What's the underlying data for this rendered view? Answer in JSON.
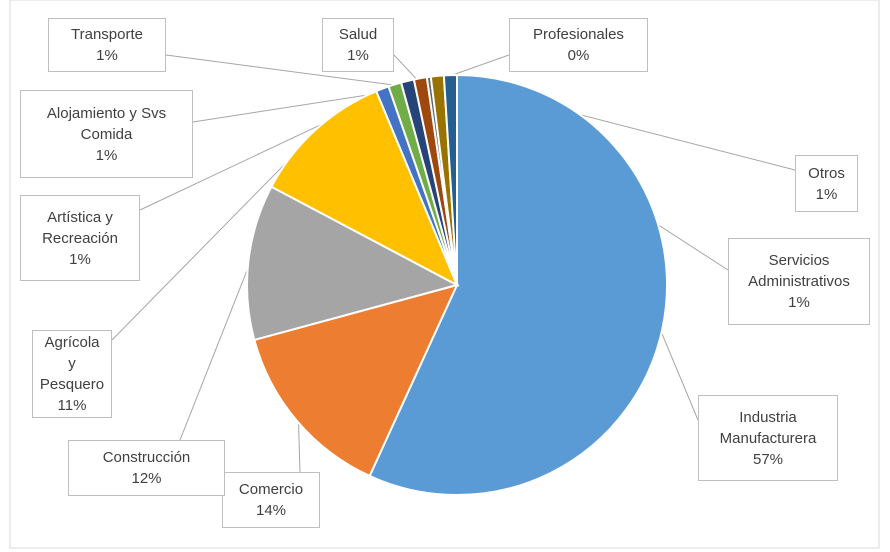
{
  "chart_data": {
    "type": "pie",
    "categories": [
      "Industria Manufacturera",
      "Comercio",
      "Construcción",
      "Agrícola y Pesquero",
      "Artística y Recreación",
      "Alojamiento y Svs Comida",
      "Transporte",
      "Salud",
      "Profesionales",
      "Servicios Administrativos",
      "Otros"
    ],
    "values": [
      57,
      14,
      12,
      11,
      1,
      1,
      1,
      1,
      0.3,
      1,
      1
    ],
    "value_labels": [
      "57%",
      "14%",
      "12%",
      "11%",
      "1%",
      "1%",
      "1%",
      "1%",
      "0%",
      "1%",
      "1%"
    ],
    "colors": [
      "#5b9bd5",
      "#ed7d31",
      "#a5a5a5",
      "#ffc000",
      "#4472c4",
      "#70ad47",
      "#264478",
      "#9e480e",
      "#636363",
      "#997300",
      "#255e91"
    ]
  }
}
